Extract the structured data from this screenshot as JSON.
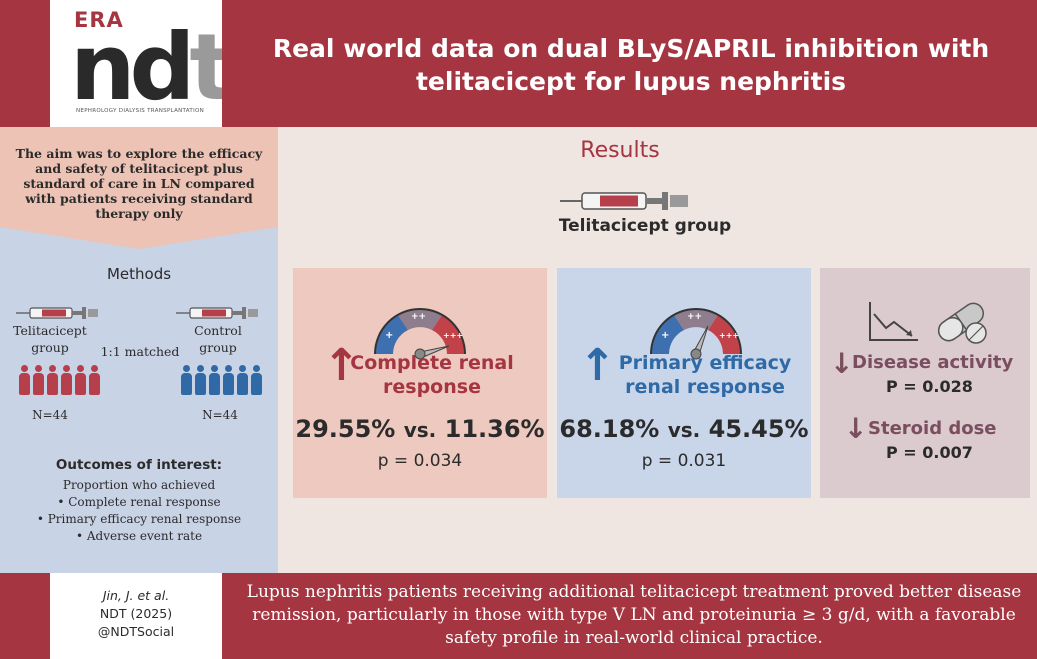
{
  "header": {
    "logo_era": "ERA",
    "logo_ndt": "ndt",
    "logo_subtitle": "NEPHROLOGY DIALYSIS TRANSPLANTATION",
    "title": "Real world data on dual BLyS/APRIL inhibition with telitacicept for lupus nephritis"
  },
  "aim": {
    "text": "The aim was to explore the efficacy and safety of telitacicept plus standard of care in LN compared with patients receiving standard therapy only"
  },
  "methods": {
    "title": "Methods",
    "telitacicept_group": "Telitacicept group",
    "control_group": "Control group",
    "ratio": "1:1 matched",
    "n_telitacicept": "N=44",
    "n_control": "N=44",
    "outcomes_title": "Outcomes of interest:",
    "outcomes_intro": "Proportion who achieved",
    "outcomes": [
      "• Complete renal response",
      "• Primary efficacy renal response",
      "• Adverse event rate"
    ]
  },
  "results": {
    "title": "Results",
    "group_label": "Telitacicept group",
    "card1": {
      "label": "Complete renal response",
      "stat_a": "29.55%",
      "vs": "vs.",
      "stat_b": "11.36%",
      "p": "p = 0.034"
    },
    "card2": {
      "label": "Primary efficacy renal response",
      "stat_a": "68.18%",
      "vs": "vs.",
      "stat_b": "45.45%",
      "p": "p = 0.031"
    },
    "card3": {
      "label1": "Disease activity",
      "p1": "P = 0.028",
      "label2": "Steroid dose",
      "p2": "P = 0.007"
    }
  },
  "footer": {
    "cite_author": "Jin, J. et al.",
    "cite_journal": "NDT (2025)",
    "cite_social": "@NDTSocial",
    "conclusion": "Lupus nephritis patients receiving additional telitacicept treatment proved better disease remission, particularly in those with type V LN and proteinuria ≥ 3 g/d, with a favorable safety profile in real-world clinical practice."
  },
  "colors": {
    "brand_red": "#a53540",
    "brand_blue": "#2f6aa6",
    "muted_purple": "#7a4d5f"
  }
}
